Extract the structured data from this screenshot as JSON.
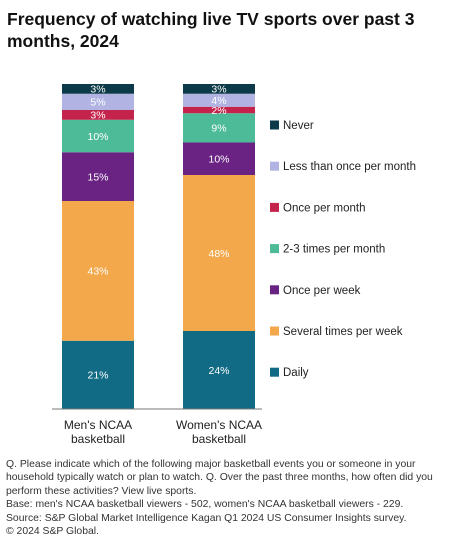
{
  "chart_data": {
    "type": "bar",
    "stacked": true,
    "title": "Frequency of watching live TV sports over past 3 months, 2024",
    "categories": [
      "Men's NCAA basketball",
      "Women's NCAA basketball"
    ],
    "category_lines": [
      [
        "Men's NCAA",
        "basketball"
      ],
      [
        "Women's NCAA",
        "basketball"
      ]
    ],
    "series": [
      {
        "name": "Daily",
        "color": "#126b84",
        "values": [
          21,
          24
        ]
      },
      {
        "name": "Several times per week",
        "color": "#f2a84b",
        "values": [
          43,
          48
        ]
      },
      {
        "name": "Once per week",
        "color": "#6a2383",
        "values": [
          15,
          10
        ]
      },
      {
        "name": "2-3 times per month",
        "color": "#4dbb98",
        "values": [
          10,
          9
        ]
      },
      {
        "name": "Once per month",
        "color": "#c4234c",
        "values": [
          3,
          2
        ]
      },
      {
        "name": "Less than once per month",
        "color": "#b1b3e3",
        "values": [
          5,
          4
        ]
      },
      {
        "name": "Never",
        "color": "#0d3a48",
        "values": [
          3,
          3
        ]
      }
    ],
    "unit": "%",
    "legend_position": "right",
    "grid": false
  },
  "notes": [
    "Q. Please indicate which of the following major basketball events you or someone in your household typically watch or plan to watch. Q. Over the past three months, how often did you perform these activities? View live sports.",
    "Base: men's NCAA basketball viewers - 502, women's NCAA basketball viewers - 229.",
    "Source: S&P Global Market Intelligence Kagan Q1 2024 US Consumer Insights survey.",
    "© 2024 S&P Global."
  ]
}
